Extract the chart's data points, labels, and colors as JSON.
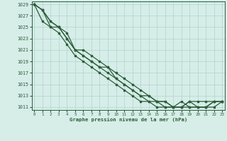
{
  "title": "Graphe pression niveau de la mer (hPa)",
  "bg_color": "#d6ede8",
  "grid_color": "#b0d4cc",
  "line_color": "#2d5c3a",
  "ylim": [
    1010.5,
    1029.5
  ],
  "yticks": [
    1011,
    1013,
    1015,
    1017,
    1019,
    1021,
    1023,
    1025,
    1027,
    1029
  ],
  "xlim": [
    -0.3,
    23.3
  ],
  "xticks": [
    0,
    1,
    2,
    3,
    4,
    5,
    6,
    7,
    8,
    9,
    10,
    11,
    12,
    13,
    14,
    15,
    16,
    17,
    18,
    19,
    20,
    21,
    22,
    23
  ],
  "series": [
    [
      1029,
      1028,
      1026,
      1025,
      1023,
      1021,
      1020,
      1019,
      1018,
      1018,
      1017,
      1016,
      1015,
      1014,
      1013,
      1012,
      1012,
      1011,
      1011,
      1012,
      1012,
      1012,
      1012,
      1012
    ],
    [
      1029,
      1026,
      1025,
      1025,
      1024,
      1021,
      1021,
      1020,
      1019,
      1018,
      1016,
      1015,
      1014,
      1013,
      1013,
      1012,
      1012,
      1011,
      1011,
      1011,
      1011,
      1011,
      1012,
      1012
    ],
    [
      1029,
      1028,
      1026,
      1025,
      1023,
      1021,
      1020,
      1019,
      1018,
      1017,
      1016,
      1015,
      1014,
      1013,
      1012,
      1012,
      1011,
      1011,
      1011,
      1012,
      1011,
      1011,
      1012,
      1012
    ],
    [
      1029,
      1028,
      1025,
      1024,
      1022,
      1020,
      1019,
      1018,
      1017,
      1016,
      1015,
      1014,
      1013,
      1012,
      1012,
      1011,
      1011,
      1011,
      1012,
      1011,
      1011,
      1011,
      1011,
      1012
    ]
  ]
}
